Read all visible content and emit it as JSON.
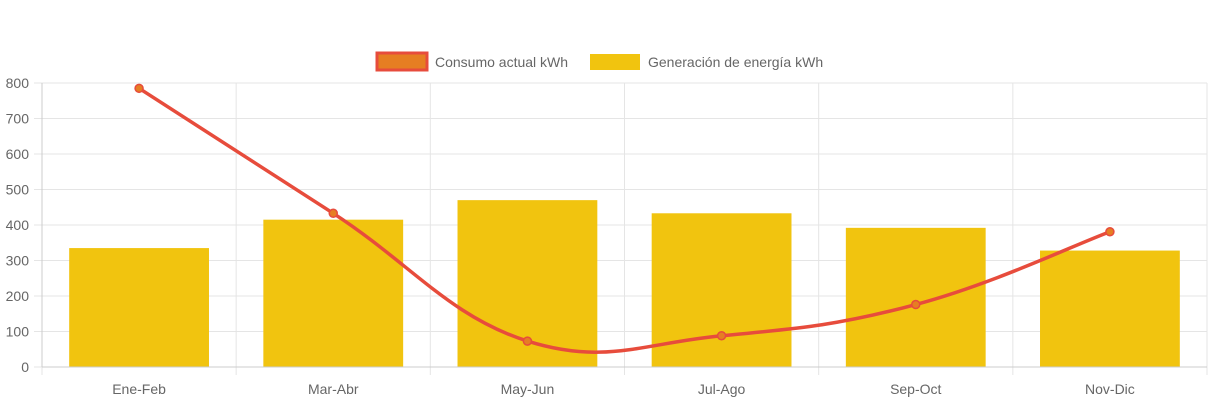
{
  "chart_data": {
    "type": "bar",
    "categories": [
      "Ene-Feb",
      "Mar-Abr",
      "May-Jun",
      "Jul-Ago",
      "Sep-Oct",
      "Nov-Dic"
    ],
    "series": [
      {
        "name": "Consumo actual kWh",
        "type": "line",
        "values": [
          785,
          433,
          73,
          88,
          176,
          381
        ],
        "color": "#e74c3c",
        "point_color": "#e67e22"
      },
      {
        "name": "Generación de energía kWh",
        "type": "bar",
        "values": [
          335,
          415,
          470,
          433,
          392,
          328
        ],
        "color": "#f1c40f"
      }
    ],
    "ylim": [
      0,
      800
    ],
    "yticks": [
      0,
      100,
      200,
      300,
      400,
      500,
      600,
      700,
      800
    ],
    "grid": true,
    "legend_position": "top-center",
    "title": "",
    "xlabel": "",
    "ylabel": ""
  }
}
